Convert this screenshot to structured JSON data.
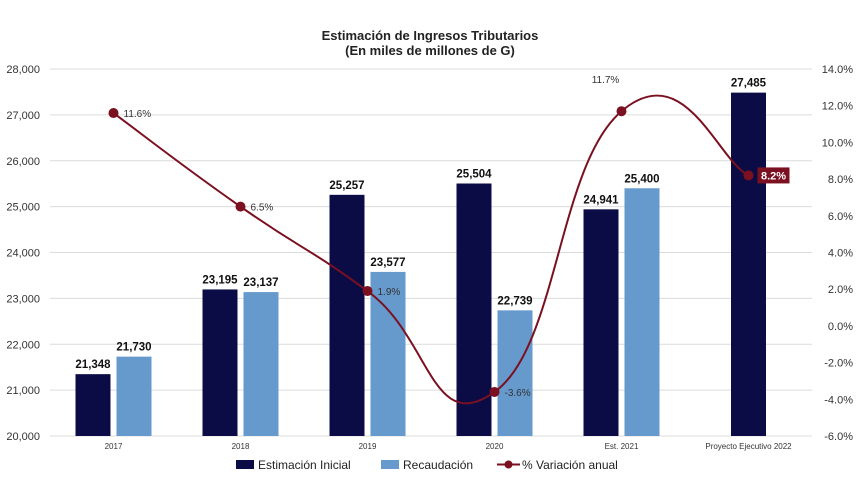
{
  "chart_data": {
    "type": "bar",
    "title": "Estimación de Ingresos Tributarios",
    "subtitle": "(En miles de millones de G)",
    "categories": [
      "2017",
      "2018",
      "2019",
      "2020",
      "Est. 2021",
      "Proyecto Ejecutivo 2022"
    ],
    "series": [
      {
        "name": "Estimación Inicial",
        "type": "bar",
        "axis": "left",
        "color": "#0b0c45",
        "values": [
          21348,
          23195,
          25257,
          25504,
          24941,
          27485
        ],
        "labels": [
          "21,348",
          "23,195",
          "25,257",
          "25,504",
          "24,941",
          "27,485"
        ]
      },
      {
        "name": "Recaudación",
        "type": "bar",
        "axis": "left",
        "color": "#6699cc",
        "values": [
          21730,
          23137,
          23577,
          22739,
          25400,
          null
        ],
        "labels": [
          "21,730",
          "23,137",
          "23,577",
          "22,739",
          "25,400",
          ""
        ]
      },
      {
        "name": "% Variación anual",
        "type": "line",
        "axis": "right",
        "color": "#7b1020",
        "values": [
          11.6,
          6.5,
          1.9,
          -3.6,
          11.7,
          8.2
        ],
        "labels": [
          "11.6%",
          "6.5%",
          "1.9%",
          "-3.6%",
          "11.7%",
          "8.2%"
        ],
        "highlight_index": 5
      }
    ],
    "y_left": {
      "ylim": [
        20000,
        28000
      ],
      "ticks": [
        20000,
        21000,
        22000,
        23000,
        24000,
        25000,
        26000,
        27000,
        28000
      ],
      "tick_labels": [
        "20,000",
        "21,000",
        "22,000",
        "23,000",
        "24,000",
        "25,000",
        "26,000",
        "27,000",
        "28,000"
      ]
    },
    "y_right": {
      "ylim": [
        -6,
        14
      ],
      "ticks": [
        -6,
        -4,
        -2,
        0,
        2,
        4,
        6,
        8,
        10,
        12,
        14
      ],
      "tick_labels": [
        "-6.0%",
        "-4.0%",
        "-2.0%",
        "0.0%",
        "2.0%",
        "4.0%",
        "6.0%",
        "8.0%",
        "10.0%",
        "12.0%",
        "14.0%"
      ]
    },
    "grid": "horizontal",
    "legend_position": "bottom"
  }
}
